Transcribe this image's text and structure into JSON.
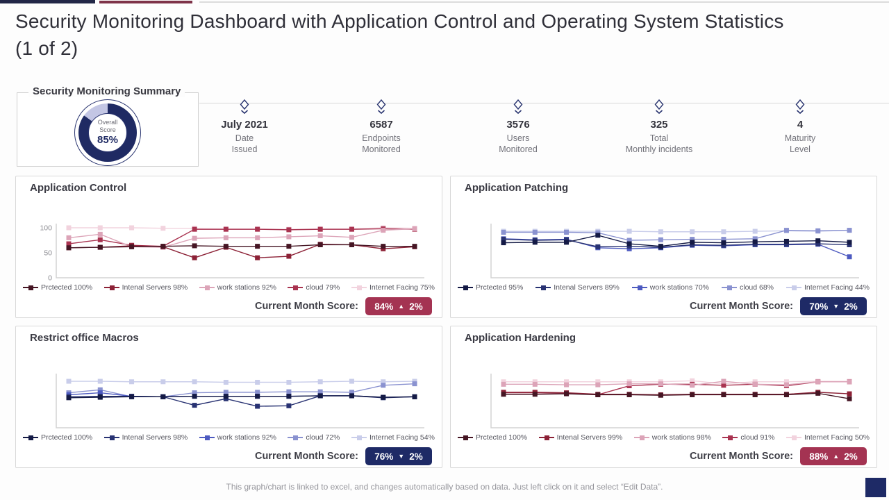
{
  "accent": {
    "navy": "#1e2a66",
    "crimson": "#a43352",
    "topbar_navy": "#222747",
    "topbar_maroon": "#7e3349",
    "divider_gray": "#d9d9d9"
  },
  "title": "Security Monitoring Dashboard with Application Control and Operating System Statistics (1 of 2)",
  "summary": {
    "title": "Security Monitoring Summary",
    "donut": {
      "label_line1": "Overall",
      "label_line2": "Score",
      "value": "85%",
      "percent": 85,
      "ring_color": "#1f2a63",
      "rest_color": "#c3c6e4"
    }
  },
  "stats": [
    {
      "value": "July 2021",
      "label_line1": "Date",
      "label_line2": "Issued"
    },
    {
      "value": "6587",
      "label_line1": "Endpoints",
      "label_line2": "Monitored"
    },
    {
      "value": "3576",
      "label_line1": "Users",
      "label_line2": "Monitored"
    },
    {
      "value": "325",
      "label_line1": "Total",
      "label_line2": "Monthly incidents"
    },
    {
      "value": "4",
      "label_line1": "Maturity",
      "label_line2": "Level"
    }
  ],
  "panels": [
    {
      "title": "Application Control",
      "legend": [
        {
          "label": "Prctected 100%"
        },
        {
          "label": "Intenal Servers 98%"
        },
        {
          "label": "work stations 92%"
        },
        {
          "label": "cloud 79%"
        },
        {
          "label": "Internet Facing 75%"
        }
      ],
      "score": {
        "label": "Current Month Score:",
        "value": "84%",
        "arrow": "▲",
        "delta": "2%",
        "badge_color": "#a43352"
      }
    },
    {
      "title": "Application Patching",
      "legend": [
        {
          "label": "Prctected 95%"
        },
        {
          "label": "Intenal Servers 89%"
        },
        {
          "label": "work stations 70%"
        },
        {
          "label": "cloud 68%"
        },
        {
          "label": "Internet Facing 44%"
        }
      ],
      "score": {
        "label": "Current Month Score:",
        "value": "70%",
        "arrow": "▼",
        "delta": "2%",
        "badge_color": "#1e2a66"
      }
    },
    {
      "title": "Restrict office Macros",
      "legend": [
        {
          "label": "Prctected 100%"
        },
        {
          "label": "Intenal Servers 98%"
        },
        {
          "label": "work stations 92%"
        },
        {
          "label": "cloud 72%"
        },
        {
          "label": "Internet Facing 54%"
        }
      ],
      "score": {
        "label": "Current Month Score:",
        "value": "76%",
        "arrow": "▼",
        "delta": "2%",
        "badge_color": "#1e2a66"
      }
    },
    {
      "title": "Application Hardening",
      "legend": [
        {
          "label": "Prctected 100%"
        },
        {
          "label": "Intenal Servers 99%"
        },
        {
          "label": "work stations 98%"
        },
        {
          "label": "cloud 91%"
        },
        {
          "label": "Internet Facing 50%"
        }
      ],
      "score": {
        "label": "Current Month Score:",
        "value": "88%",
        "arrow": "▲",
        "delta": "2%",
        "badge_color": "#a43352"
      }
    }
  ],
  "chart_data": [
    {
      "type": "line",
      "title": "Application Control",
      "points": 12,
      "ylim": [
        0,
        110
      ],
      "yticks": [
        100,
        50,
        0
      ],
      "series": [
        {
          "name": "Prctected 100%",
          "color": "#451523",
          "values": [
            60,
            61,
            62,
            63,
            64,
            63,
            63,
            63,
            66,
            66,
            63,
            63
          ]
        },
        {
          "name": "Intenal Servers 98%",
          "color": "#8c2136",
          "values": [
            60,
            61,
            64,
            62,
            40,
            61,
            40,
            43,
            67,
            66,
            58,
            62
          ]
        },
        {
          "name": "work stations 92%",
          "color": "#dca4b8",
          "values": [
            80,
            87,
            62,
            61,
            79,
            80,
            80,
            82,
            84,
            81,
            95,
            98
          ]
        },
        {
          "name": "cloud 79%",
          "color": "#a93350",
          "values": [
            68,
            76,
            65,
            63,
            97,
            97,
            97,
            96,
            97,
            97,
            98,
            97
          ]
        },
        {
          "name": "Internet Facing 75%",
          "color": "#f2d3de",
          "values": [
            100,
            100,
            100,
            99,
            99,
            98,
            98,
            97,
            98,
            98,
            100,
            99
          ]
        }
      ]
    },
    {
      "type": "line",
      "title": "Application Patching",
      "points": 12,
      "ylim": [
        0,
        110
      ],
      "yticks": [],
      "series": [
        {
          "name": "Prctected 95%",
          "color": "#141a45",
          "values": [
            70,
            71,
            71,
            85,
            68,
            63,
            71,
            70,
            72,
            73,
            74,
            71
          ]
        },
        {
          "name": "Intenal Servers 89%",
          "color": "#283272",
          "values": [
            77,
            75,
            76,
            62,
            63,
            61,
            66,
            65,
            67,
            67,
            68,
            66
          ]
        },
        {
          "name": "work stations 70%",
          "color": "#4d5ac0",
          "values": [
            78,
            76,
            77,
            60,
            58,
            60,
            65,
            64,
            66,
            66,
            67,
            42
          ]
        },
        {
          "name": "cloud 68%",
          "color": "#8a92d0",
          "values": [
            91,
            91,
            91,
            90,
            75,
            76,
            77,
            77,
            78,
            95,
            94,
            95
          ]
        },
        {
          "name": "Internet Facing 44%",
          "color": "#c9cdea",
          "values": [
            93,
            93,
            93,
            93,
            93,
            92,
            92,
            92,
            93,
            94,
            93,
            95
          ]
        }
      ]
    },
    {
      "type": "line",
      "title": "Restrict office Macros",
      "points": 12,
      "ylim": [
        0,
        110
      ],
      "yticks": [],
      "series": [
        {
          "name": "Prctected 100%",
          "color": "#141a45",
          "values": [
            60,
            61,
            62,
            62,
            63,
            63,
            63,
            63,
            64,
            64,
            61,
            62
          ]
        },
        {
          "name": "Intenal Servers 98%",
          "color": "#283272",
          "values": [
            62,
            63,
            63,
            62,
            45,
            58,
            43,
            44,
            64,
            64,
            60,
            62
          ]
        },
        {
          "name": "work stations 92%",
          "color": "#4d5ac0",
          "values": [
            66,
            70,
            63,
            62,
            63,
            63,
            63,
            63,
            64,
            64,
            61,
            62
          ]
        },
        {
          "name": "cloud 72%",
          "color": "#8a92d0",
          "values": [
            70,
            76,
            62,
            62,
            70,
            71,
            71,
            72,
            72,
            71,
            85,
            88
          ]
        },
        {
          "name": "Internet Facing 54%",
          "color": "#c9cdea",
          "values": [
            93,
            93,
            92,
            92,
            92,
            91,
            91,
            91,
            92,
            93,
            92,
            93
          ]
        }
      ]
    },
    {
      "type": "line",
      "title": "Application Hardening",
      "points": 12,
      "ylim": [
        0,
        110
      ],
      "yticks": [],
      "series": [
        {
          "name": "Prctected 100%",
          "color": "#451523",
          "values": [
            67,
            67,
            68,
            66,
            66,
            65,
            66,
            66,
            66,
            66,
            69,
            58
          ]
        },
        {
          "name": "Intenal Servers 99%",
          "color": "#8c2136",
          "values": [
            71,
            71,
            70,
            67,
            67,
            66,
            67,
            67,
            67,
            67,
            71,
            68
          ]
        },
        {
          "name": "work stations 98%",
          "color": "#dca4b8",
          "values": [
            87,
            87,
            86,
            86,
            88,
            88,
            85,
            93,
            87,
            86,
            92,
            92
          ]
        },
        {
          "name": "cloud 91%",
          "color": "#a93350",
          "values": [
            70,
            70,
            69,
            66,
            84,
            87,
            87,
            85,
            87,
            84,
            92,
            92
          ]
        },
        {
          "name": "Internet Facing 50%",
          "color": "#f2d3de",
          "values": [
            92,
            92,
            92,
            92,
            92,
            92,
            94,
            88,
            92,
            92,
            93,
            93
          ]
        }
      ]
    }
  ],
  "footer": "This graph/chart is linked to excel, and changes automatically based on data. Just left click on it and select “Edit Data”."
}
